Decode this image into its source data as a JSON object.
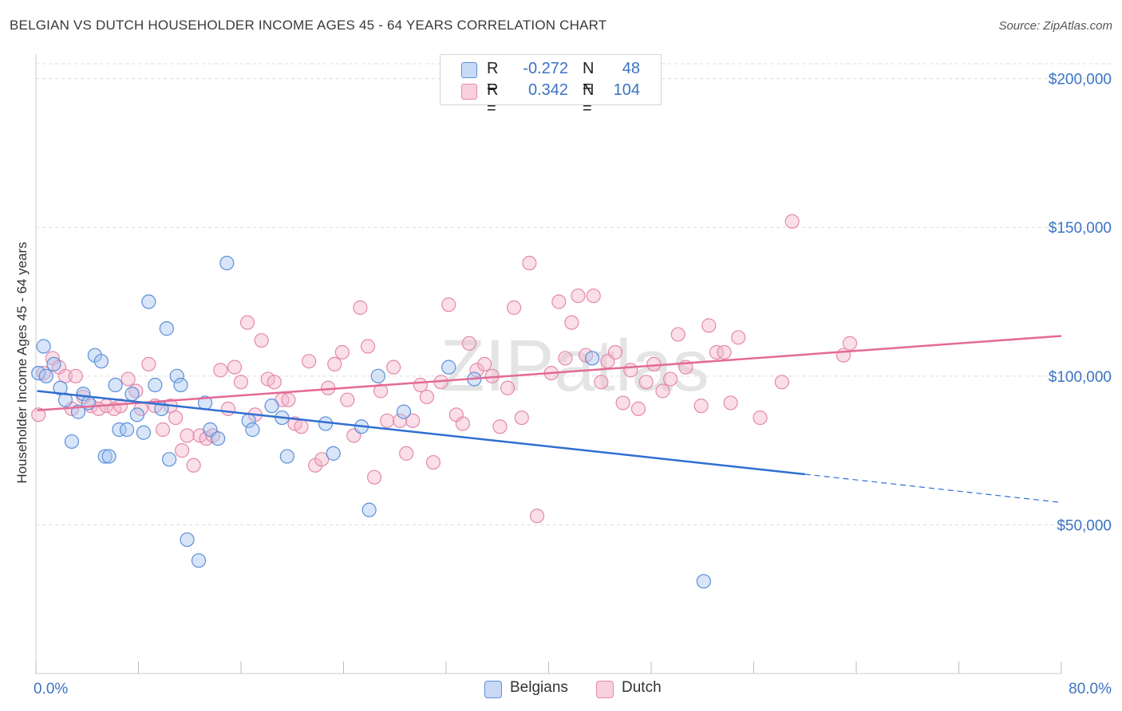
{
  "title": "BELGIAN VS DUTCH HOUSEHOLDER INCOME AGES 45 - 64 YEARS CORRELATION CHART",
  "source": "Source: ZipAtlas.com",
  "watermark": "ZIPatlas",
  "legend": {
    "belgians": {
      "r_label": "R =",
      "r_value": "-0.272",
      "n_label": "N =",
      "n_value": "48"
    },
    "dutch": {
      "r_label": "R =",
      "r_value": "0.342",
      "n_label": "N =",
      "n_value": "104"
    }
  },
  "bottom_legend": {
    "belgians": "Belgians",
    "dutch": "Dutch"
  },
  "colors": {
    "belgians_fill": "#a9c6ef",
    "belgians_stroke": "#5b8fd8",
    "belgians_line": "#2f6fd1",
    "dutch_fill": "#f4b6cb",
    "dutch_stroke": "#e38aab",
    "dutch_line": "#e46a96",
    "axis_text": "#3b73c4"
  },
  "chart_data": {
    "type": "scatter",
    "title": "BELGIAN VS DUTCH HOUSEHOLDER INCOME AGES 45 - 64 YEARS CORRELATION CHART",
    "xlabel": "",
    "ylabel": "Householder Income Ages 45 - 64 years",
    "xlim": [
      0,
      80
    ],
    "ylim": [
      0,
      205000
    ],
    "x_tick_labels": [
      "0.0%",
      "80.0%"
    ],
    "y_ticks": [
      50000,
      100000,
      150000,
      200000
    ],
    "y_tick_labels": [
      "$50,000",
      "$100,000",
      "$150,000",
      "$200,000"
    ],
    "grid": true,
    "legend_position": "top-center",
    "series": [
      {
        "name": "Belgians",
        "trend": {
          "x0": 0.1,
          "y0": 95000,
          "x1": 60,
          "y1": 67000,
          "dash_to_x": 80,
          "dash_to_y": 57500
        },
        "points": [
          [
            0.2,
            101000
          ],
          [
            0.6,
            110000
          ],
          [
            0.8,
            100000
          ],
          [
            1.4,
            104000
          ],
          [
            1.9,
            96000
          ],
          [
            2.3,
            92000
          ],
          [
            2.8,
            78000
          ],
          [
            3.3,
            88000
          ],
          [
            3.7,
            94000
          ],
          [
            4.1,
            91000
          ],
          [
            4.6,
            107000
          ],
          [
            5.1,
            105000
          ],
          [
            5.4,
            73000
          ],
          [
            5.7,
            73000
          ],
          [
            6.2,
            97000
          ],
          [
            6.5,
            82000
          ],
          [
            7.1,
            82000
          ],
          [
            7.5,
            94000
          ],
          [
            7.9,
            87000
          ],
          [
            8.4,
            81000
          ],
          [
            8.8,
            125000
          ],
          [
            9.3,
            97000
          ],
          [
            9.8,
            89000
          ],
          [
            10.2,
            116000
          ],
          [
            10.4,
            72000
          ],
          [
            11.0,
            100000
          ],
          [
            11.3,
            97000
          ],
          [
            11.8,
            45000
          ],
          [
            12.7,
            38000
          ],
          [
            13.2,
            91000
          ],
          [
            13.6,
            82000
          ],
          [
            14.2,
            79000
          ],
          [
            14.9,
            138000
          ],
          [
            16.6,
            85000
          ],
          [
            16.9,
            82000
          ],
          [
            18.4,
            90000
          ],
          [
            19.2,
            86000
          ],
          [
            19.6,
            73000
          ],
          [
            22.6,
            84000
          ],
          [
            23.2,
            74000
          ],
          [
            25.4,
            83000
          ],
          [
            26.0,
            55000
          ],
          [
            26.7,
            100000
          ],
          [
            28.7,
            88000
          ],
          [
            32.2,
            103000
          ],
          [
            34.2,
            99000
          ],
          [
            43.4,
            106000
          ],
          [
            52.1,
            31000
          ]
        ]
      },
      {
        "name": "Dutch",
        "trend": {
          "x0": 0.1,
          "y0": 88500,
          "x1": 80,
          "y1": 113500
        },
        "points": [
          [
            0.2,
            87000
          ],
          [
            0.6,
            101000
          ],
          [
            1.3,
            106000
          ],
          [
            1.8,
            103000
          ],
          [
            2.3,
            100000
          ],
          [
            2.8,
            89000
          ],
          [
            3.1,
            100000
          ],
          [
            3.7,
            93000
          ],
          [
            4.3,
            90000
          ],
          [
            4.9,
            89000
          ],
          [
            5.5,
            90000
          ],
          [
            6.1,
            89000
          ],
          [
            6.6,
            90000
          ],
          [
            7.2,
            99000
          ],
          [
            7.8,
            95000
          ],
          [
            8.2,
            89000
          ],
          [
            8.8,
            104000
          ],
          [
            9.3,
            90000
          ],
          [
            9.9,
            82000
          ],
          [
            10.5,
            90000
          ],
          [
            10.9,
            86000
          ],
          [
            11.4,
            75000
          ],
          [
            11.8,
            80000
          ],
          [
            12.3,
            70000
          ],
          [
            12.8,
            80000
          ],
          [
            13.3,
            79000
          ],
          [
            13.8,
            80000
          ],
          [
            14.4,
            102000
          ],
          [
            15.0,
            89000
          ],
          [
            15.5,
            103000
          ],
          [
            16.0,
            98000
          ],
          [
            16.5,
            118000
          ],
          [
            17.1,
            87000
          ],
          [
            17.6,
            112000
          ],
          [
            18.1,
            99000
          ],
          [
            18.6,
            98000
          ],
          [
            19.2,
            92000
          ],
          [
            19.7,
            92000
          ],
          [
            20.2,
            84000
          ],
          [
            20.7,
            83000
          ],
          [
            21.3,
            105000
          ],
          [
            21.8,
            70000
          ],
          [
            22.3,
            72000
          ],
          [
            22.8,
            96000
          ],
          [
            23.3,
            104000
          ],
          [
            23.9,
            108000
          ],
          [
            24.3,
            92000
          ],
          [
            24.8,
            80000
          ],
          [
            25.3,
            123000
          ],
          [
            25.9,
            110000
          ],
          [
            26.4,
            66000
          ],
          [
            26.9,
            95000
          ],
          [
            27.4,
            85000
          ],
          [
            27.9,
            103000
          ],
          [
            28.4,
            85000
          ],
          [
            28.9,
            74000
          ],
          [
            29.4,
            85000
          ],
          [
            30.0,
            97000
          ],
          [
            30.5,
            93000
          ],
          [
            31.0,
            71000
          ],
          [
            31.6,
            98000
          ],
          [
            32.2,
            124000
          ],
          [
            32.8,
            87000
          ],
          [
            33.3,
            84000
          ],
          [
            33.8,
            111000
          ],
          [
            34.4,
            102000
          ],
          [
            35.0,
            104000
          ],
          [
            35.6,
            100000
          ],
          [
            36.2,
            83000
          ],
          [
            36.8,
            96000
          ],
          [
            37.3,
            123000
          ],
          [
            37.9,
            86000
          ],
          [
            38.5,
            138000
          ],
          [
            39.1,
            53000
          ],
          [
            40.2,
            101000
          ],
          [
            40.8,
            125000
          ],
          [
            41.3,
            106000
          ],
          [
            41.8,
            118000
          ],
          [
            42.3,
            127000
          ],
          [
            42.9,
            107000
          ],
          [
            43.5,
            127000
          ],
          [
            44.1,
            98000
          ],
          [
            44.6,
            105000
          ],
          [
            45.2,
            108000
          ],
          [
            45.8,
            91000
          ],
          [
            46.4,
            102000
          ],
          [
            47.0,
            89000
          ],
          [
            47.6,
            98000
          ],
          [
            48.2,
            104000
          ],
          [
            48.9,
            95000
          ],
          [
            49.5,
            99000
          ],
          [
            50.1,
            114000
          ],
          [
            50.7,
            103000
          ],
          [
            51.9,
            90000
          ],
          [
            52.5,
            117000
          ],
          [
            53.1,
            108000
          ],
          [
            53.7,
            108000
          ],
          [
            54.2,
            91000
          ],
          [
            54.8,
            113000
          ],
          [
            56.5,
            86000
          ],
          [
            58.2,
            98000
          ],
          [
            59.0,
            152000
          ],
          [
            63.0,
            107000
          ],
          [
            63.5,
            111000
          ]
        ]
      }
    ]
  }
}
